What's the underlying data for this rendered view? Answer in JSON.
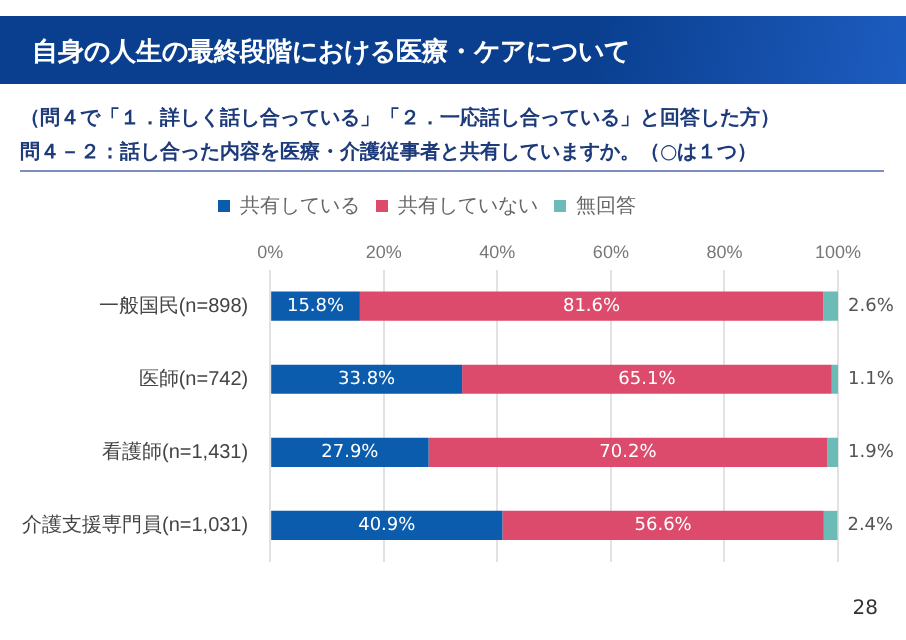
{
  "chart_data": {
    "type": "bar",
    "orientation": "horizontal",
    "stacked": true,
    "title": "自身の人生の最終段階における医療・ケアについて",
    "subtitle": "（問４で「１．詳しく話し合っている」「２．一応話し合っている」と回答した方）",
    "annotations": [
      "問４－２：話し合った内容を医療・介護従事者と共有していますか。（○は１つ）",
      "28"
    ],
    "categories": [
      "一般国民(n=898)",
      "医師(n=742)",
      "看護師(n=1,431)",
      "介護支援専門員(n=1,031)"
    ],
    "series": [
      {
        "name": "共有している",
        "color": "#0b5cad",
        "values": [
          15.8,
          33.8,
          27.9,
          40.9
        ],
        "value_labels": [
          "15.8%",
          "33.8%",
          "27.9%",
          "40.9%"
        ]
      },
      {
        "name": "共有していない",
        "color": "#dc4b6c",
        "values": [
          81.6,
          65.1,
          70.2,
          56.6
        ],
        "value_labels": [
          "81.6%",
          "65.1%",
          "70.2%",
          "56.6%"
        ]
      },
      {
        "name": "無回答",
        "color": "#6bbcb6",
        "values": [
          2.6,
          1.1,
          1.9,
          2.4
        ],
        "value_labels": [
          "2.6%",
          "1.1%",
          "1.9%",
          "2.4%"
        ]
      }
    ],
    "xlim": [
      0,
      100
    ],
    "xticks": [
      {
        "value": 0,
        "label": "0%"
      },
      {
        "value": 20,
        "label": "20%"
      },
      {
        "value": 40,
        "label": "40%"
      },
      {
        "value": 60,
        "label": "60%"
      },
      {
        "value": 80,
        "label": "80%"
      },
      {
        "value": 100,
        "label": "100%"
      }
    ],
    "grid": "x",
    "legend": "top"
  }
}
